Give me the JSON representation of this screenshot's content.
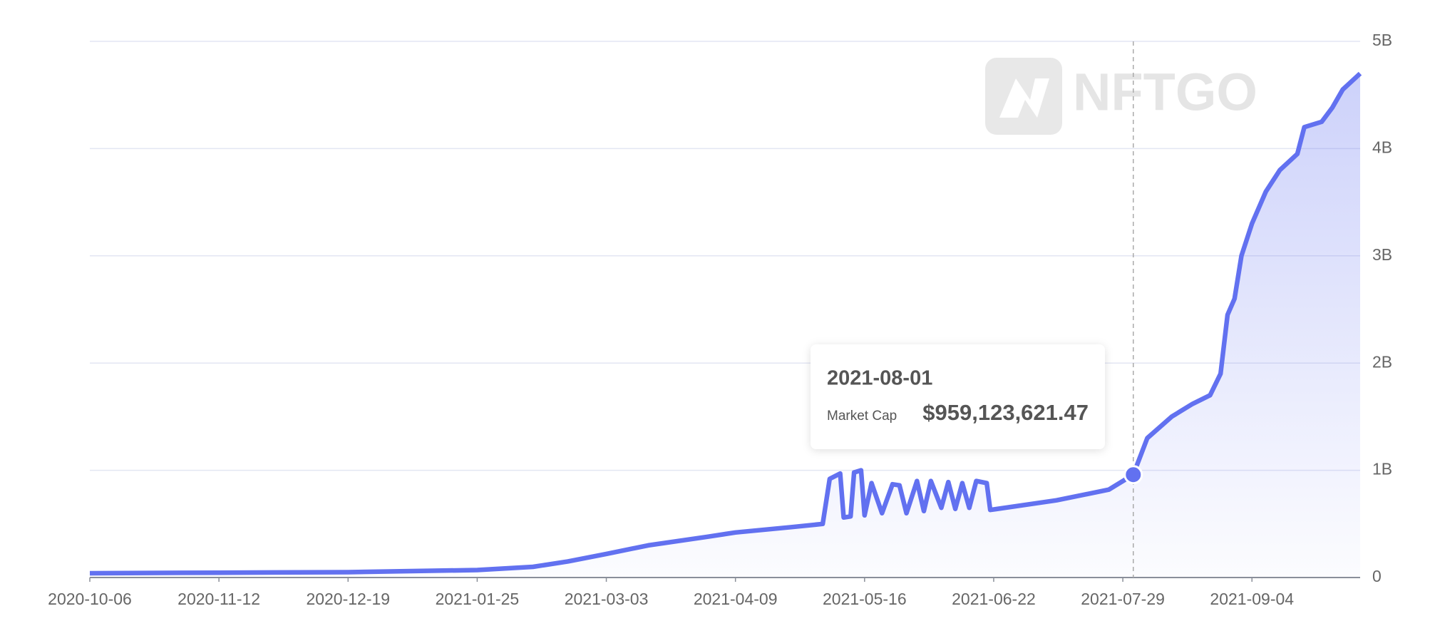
{
  "chart_data": {
    "type": "area-line",
    "watermark": "NFTGO",
    "x": [
      "2020-10-06",
      "2020-11-12",
      "2020-12-19",
      "2021-01-25",
      "2021-02-10",
      "2021-02-20",
      "2021-03-03",
      "2021-03-15",
      "2021-04-01",
      "2021-04-09",
      "2021-04-25",
      "2021-05-04",
      "2021-05-06",
      "2021-05-09",
      "2021-05-10",
      "2021-05-12",
      "2021-05-13",
      "2021-05-15",
      "2021-05-16",
      "2021-05-18",
      "2021-05-21",
      "2021-05-24",
      "2021-05-26",
      "2021-05-28",
      "2021-05-31",
      "2021-06-02",
      "2021-06-04",
      "2021-06-07",
      "2021-06-09",
      "2021-06-11",
      "2021-06-13",
      "2021-06-15",
      "2021-06-17",
      "2021-06-20",
      "2021-06-21",
      "2021-07-10",
      "2021-07-25",
      "2021-08-01",
      "2021-08-05",
      "2021-08-12",
      "2021-08-18",
      "2021-08-23",
      "2021-08-26",
      "2021-08-28",
      "2021-08-30",
      "2021-09-01",
      "2021-09-04",
      "2021-09-08",
      "2021-09-12",
      "2021-09-17",
      "2021-09-19",
      "2021-09-24",
      "2021-09-27",
      "2021-09-30",
      "2021-10-05"
    ],
    "series": [
      {
        "name": "Market Cap",
        "color": "#6271f0",
        "values": [
          40000000,
          45000000,
          50000000,
          70000000,
          100000000,
          150000000,
          220000000,
          300000000,
          380000000,
          420000000,
          470000000,
          500000000,
          920000000,
          970000000,
          560000000,
          570000000,
          980000000,
          1000000000,
          580000000,
          880000000,
          600000000,
          870000000,
          860000000,
          600000000,
          900000000,
          620000000,
          900000000,
          650000000,
          890000000,
          640000000,
          880000000,
          650000000,
          900000000,
          880000000,
          630000000,
          720000000,
          820000000,
          959123621.47,
          1300000000,
          1500000000,
          1620000000,
          1700000000,
          1900000000,
          2450000000,
          2600000000,
          3000000000,
          3300000000,
          3600000000,
          3800000000,
          3950000000,
          4200000000,
          4250000000,
          4380000000,
          4550000000,
          4700000000
        ]
      }
    ],
    "xlim": [
      "2020-10-06",
      "2021-10-05"
    ],
    "xticks": [
      "2020-10-06",
      "2020-11-12",
      "2020-12-19",
      "2021-01-25",
      "2021-03-03",
      "2021-04-09",
      "2021-05-16",
      "2021-06-22",
      "2021-07-29",
      "2021-09-04"
    ],
    "ylim": [
      0,
      5000000000
    ],
    "yticks": [
      0,
      {
        "value": 1000000000,
        "label": "1B"
      },
      {
        "value": 2000000000,
        "label": "2B"
      },
      {
        "value": 3000000000,
        "label": "3B"
      },
      {
        "value": 4000000000,
        "label": "4B"
      },
      {
        "value": 5000000000,
        "label": "5B"
      }
    ],
    "grid": true,
    "tooltip": {
      "x": "2021-08-01",
      "value_label": "$959,123,621.47"
    }
  }
}
